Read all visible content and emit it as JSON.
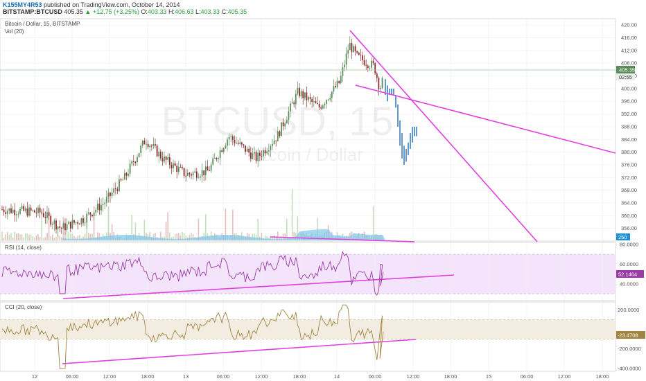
{
  "header": {
    "user": "K155MY4R53",
    "published": "published on TradingView.com, October 14, 2014",
    "symbol": "BITSTAMP:BTCUSD",
    "last": "405.35",
    "change": "+12.75 (+3.25%)",
    "open_label": "O:",
    "open": "403.33",
    "high_label": "H:",
    "high": "406.63",
    "low_label": "L:",
    "low": "403.33",
    "close_label": "C:",
    "close": "405.35"
  },
  "price_pane": {
    "title": "Bitcoin / Dollar, 15, BITSTAMP",
    "vol_label": "Vol (20)",
    "watermark_symbol": "BTCUSD, 15",
    "watermark_name": "Bitcoin / Dollar",
    "price_tag": "405.35",
    "timer_tag": "02:55",
    "vol_tag": "250"
  },
  "rsi_pane": {
    "title": "RSI (14, close)",
    "value_tag": "52.1464"
  },
  "cci_pane": {
    "title": "CCI (20, close)",
    "value_tag": "-23.4708"
  },
  "colors": {
    "bull": "#5b8c5a",
    "bear": "#8b2c2c",
    "trendline": "#e040e0",
    "forecast": "#3a7fbf",
    "rsi_band": "#f4e4fb",
    "cci_band": "#f3ece0",
    "volume": "#7fc6ea"
  },
  "chart_data": [
    {
      "type": "candlestick",
      "title": "Bitcoin / Dollar, 15, BITSTAMP",
      "y_ticks": [
        356,
        360,
        364,
        368,
        372,
        376,
        380,
        384,
        388,
        392,
        396,
        400,
        404,
        408,
        412,
        416,
        420
      ],
      "ylim": [
        352,
        422
      ],
      "x_ticks": [
        "12",
        "06:00",
        "12:00",
        "18:00",
        "13",
        "06:00",
        "12:00",
        "18:00",
        "14",
        "06:00",
        "12:00",
        "18:00",
        "15",
        "06:00",
        "12:00",
        "18:00"
      ],
      "last_price": 405.35
    },
    {
      "type": "line",
      "title": "RSI (14, close)",
      "y_ticks": [
        40,
        60,
        80
      ],
      "ylim": [
        23,
        82
      ],
      "band": [
        30,
        70
      ],
      "last_value": 52.1464
    },
    {
      "type": "line",
      "title": "CCI (20, close)",
      "y_ticks": [
        -400,
        -200,
        200
      ],
      "ylim": [
        -430,
        280
      ],
      "band": [
        -100,
        100
      ],
      "last_value": -23.4708
    }
  ]
}
